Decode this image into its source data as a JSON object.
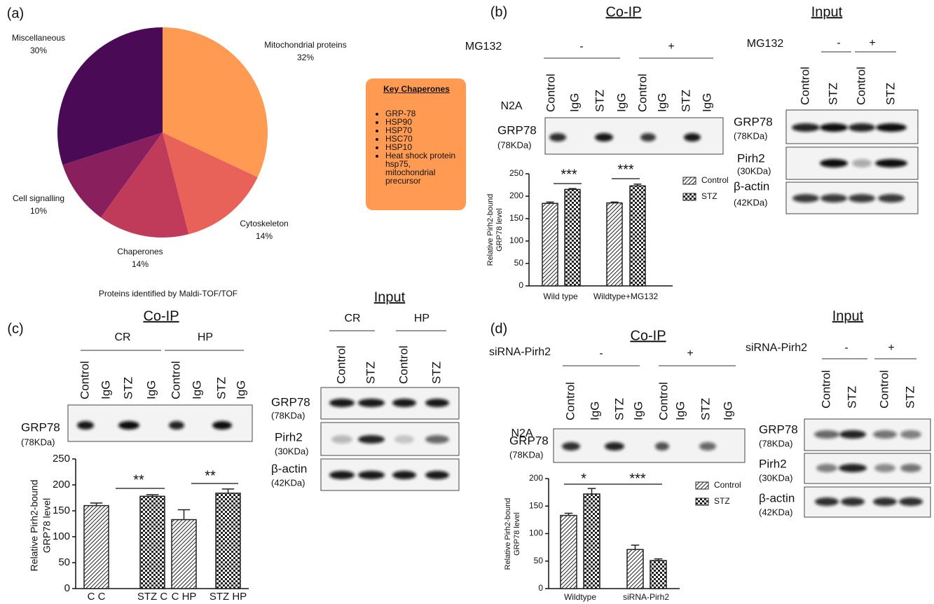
{
  "chart_data": [
    {
      "type": "pie",
      "title": "Proteins identified by Maldi-TOF/TOF",
      "categories": [
        "Mitochondrial proteins",
        "Cytoskeleton",
        "Chaperones",
        "Cell signalling",
        "Miscellaneous"
      ],
      "values": [
        32,
        14,
        14,
        10,
        30
      ],
      "value_labels": [
        "32%",
        "14%",
        "14%",
        "10%",
        "30%"
      ],
      "colors": [
        "#ff9a52",
        "#e8625a",
        "#c03a5a",
        "#8a1f5e",
        "#4a0a55"
      ]
    },
    {
      "type": "bar",
      "categories": [
        "Wild type",
        "Wildtype+MG132"
      ],
      "series": [
        {
          "name": "Control",
          "color": "#222",
          "values": [
            184,
            185
          ],
          "errors": [
            3,
            2
          ]
        },
        {
          "name": "STZ",
          "color": "#222",
          "values": [
            215,
            223
          ],
          "errors": [
            2,
            4
          ]
        }
      ],
      "ylabel": [
        "Relative Pirh2-bound",
        "GRP78 level"
      ],
      "ylim": [
        0,
        250
      ],
      "yticks": [
        0,
        50,
        100,
        150,
        200,
        250
      ],
      "annotations": [
        "***",
        "***"
      ],
      "legend": "right"
    },
    {
      "type": "bar",
      "categories": [
        "C C",
        "STZ C",
        "C HP",
        "STZ HP"
      ],
      "values": [
        160,
        178,
        133,
        184
      ],
      "errors": [
        5,
        3,
        19,
        8
      ],
      "color": "#222",
      "ylabel": [
        "Relative Pirh2-bound",
        "GRP78 level"
      ],
      "ylim": [
        0,
        250
      ],
      "yticks": [
        0,
        50,
        100,
        150,
        200,
        250
      ],
      "annotations": [
        "**",
        "**"
      ]
    },
    {
      "type": "bar",
      "categories": [
        "Wildtype",
        "siRNA-Pirh2"
      ],
      "series": [
        {
          "name": "Control",
          "color": "#222",
          "values": [
            133,
            71
          ],
          "errors": [
            4,
            8
          ]
        },
        {
          "name": "STZ",
          "color": "#222",
          "values": [
            172,
            51
          ],
          "errors": [
            10,
            3
          ]
        }
      ],
      "ylabel": [
        "Relative Pirh2-bound",
        "GRP78 level"
      ],
      "ylim": [
        0,
        200
      ],
      "yticks": [
        0,
        50,
        100,
        150,
        200
      ],
      "annotations": [
        "*",
        "***"
      ],
      "legend": "right"
    }
  ],
  "figure": {
    "a": {
      "label": "(a)",
      "key": {
        "title": "Key Chaperones",
        "items": [
          "GRP-78",
          "HSP90",
          "HSP70",
          "HSC70",
          "HSP10",
          "Heat shock protein hsp75, mitochondrial precursor"
        ]
      }
    },
    "b": {
      "label": "(b)",
      "coip": {
        "title": "Co-IP",
        "treatment": "MG132",
        "groups": [
          "-",
          "+"
        ],
        "cell": "N2A",
        "lanes": [
          "Control",
          "IgG",
          "STZ",
          "IgG",
          "Control",
          "IgG",
          "STZ",
          "IgG"
        ],
        "rows": [
          {
            "name": "GRP78",
            "size": "(78KDa)"
          }
        ]
      },
      "input": {
        "title": "Input",
        "treatment": "MG132",
        "groups": [
          "-",
          "+"
        ],
        "lanes": [
          "Control",
          "STZ",
          "Control",
          "STZ"
        ],
        "rows": [
          {
            "name": "GRP78",
            "size": "(78KDa)"
          },
          {
            "name": "Pirh2",
            "size": "(30KDa)"
          },
          {
            "name": "β-actin",
            "size": "(42KDa)"
          }
        ]
      }
    },
    "c": {
      "label": "(c)",
      "coip": {
        "title": "Co-IP",
        "groups": [
          "CR",
          "HP"
        ],
        "lanes": [
          "Control",
          "IgG",
          "STZ",
          "IgG",
          "Control",
          "IgG",
          "STZ",
          "IgG"
        ],
        "rows": [
          {
            "name": "GRP78",
            "size": "(78KDa)"
          }
        ]
      },
      "input": {
        "title": "Input",
        "groups": [
          "CR",
          "HP"
        ],
        "lanes": [
          "Control",
          "STZ",
          "Control",
          "STZ"
        ],
        "rows": [
          {
            "name": "GRP78",
            "size": "(78KDa)"
          },
          {
            "name": "Pirh2",
            "size": "(30KDa)"
          },
          {
            "name": "β-actin",
            "size": "(42KDa)"
          }
        ]
      }
    },
    "d": {
      "label": "(d)",
      "coip": {
        "title": "Co-IP",
        "treatment": "siRNA-Pirh2",
        "groups": [
          "-",
          "+"
        ],
        "cell": "N2A",
        "lanes": [
          "Control",
          "IgG",
          "STZ",
          "IgG",
          "Control",
          "IgG",
          "STZ",
          "IgG"
        ],
        "rows": [
          {
            "name": "GRP78",
            "size": "(78KDa)"
          }
        ]
      },
      "input": {
        "title": "Input",
        "treatment": "siRNA-Pirh2",
        "groups": [
          "-",
          "+"
        ],
        "lanes": [
          "Control",
          "STZ",
          "Control",
          "STZ"
        ],
        "rows": [
          {
            "name": "GRP78",
            "size": "(78KDa)"
          },
          {
            "name": "Pirh2",
            "size": "(30KDa)"
          },
          {
            "name": "β-actin",
            "size": "(42KDa)"
          }
        ]
      }
    }
  }
}
